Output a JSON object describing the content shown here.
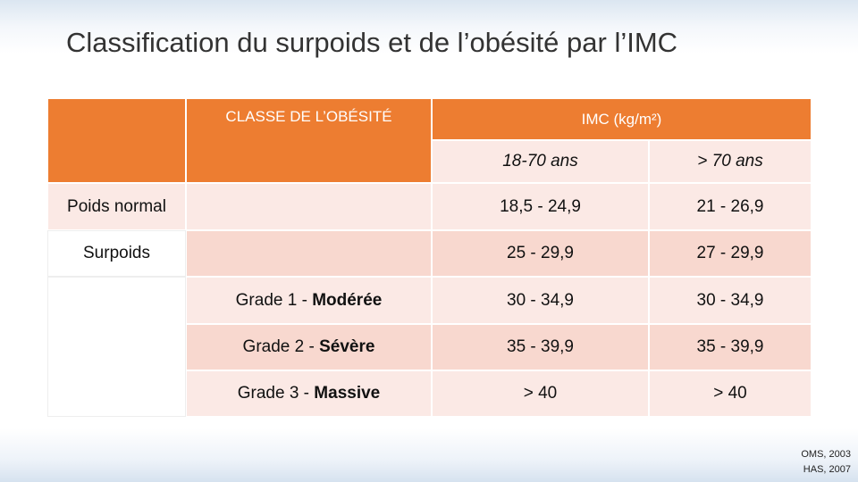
{
  "title": "Classification du surpoids et de l’obésité par l’IMC",
  "table": {
    "header": {
      "class": "CLASSE DE L’OBÉSITÉ",
      "imc": "IMC (kg/m²)",
      "ages": [
        "18-70 ans",
        "> 70 ans"
      ]
    },
    "rows": [
      {
        "label": "Poids normal",
        "values": [
          "18,5 - 24,9",
          "21 - 26,9"
        ]
      },
      {
        "label": "Surpoids",
        "values": [
          "25 - 29,9",
          "27 - 29,9"
        ]
      },
      {
        "grade": "Grade 1 - ",
        "level": "Modérée",
        "values": [
          "30 - 34,9",
          "30 - 34,9"
        ]
      },
      {
        "grade": "Grade 2 - ",
        "level": "Sévère",
        "values": [
          "35 - 39,9",
          "35 - 39,9"
        ]
      },
      {
        "grade": "Grade 3 - ",
        "level": "Massive",
        "values": [
          "> 40",
          "> 40"
        ]
      }
    ]
  },
  "source": [
    "OMS, 2003",
    "HAS, 2007"
  ]
}
